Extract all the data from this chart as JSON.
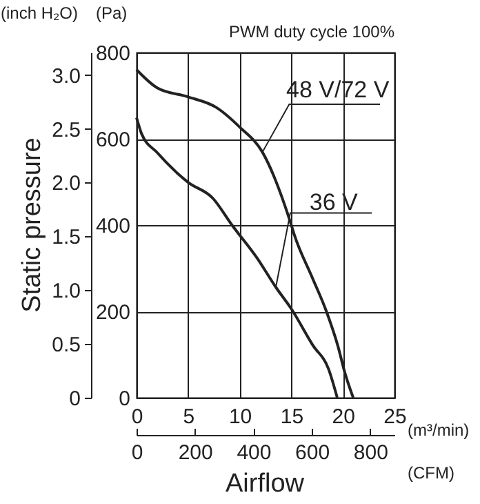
{
  "chart_data": {
    "type": "line",
    "title": "PWM duty cycle 100%",
    "xlabel": "(m³/min)",
    "ylabel": "(Pa)",
    "y2label": "(inch H₂O)",
    "x2label": "(CFM)",
    "annotations": [
      "Static pressure",
      "Airflow"
    ],
    "series": [
      {
        "name": "48 V/72 V",
        "color": "#222222",
        "x": [
          0,
          2,
          5,
          7.7,
          10,
          12.2,
          15,
          15.3,
          17,
          18.4,
          19.5,
          20.2,
          21.0
        ],
        "values": [
          760,
          718,
          697,
          673,
          627,
          569,
          400,
          377,
          280,
          200,
          121,
          57,
          0
        ]
      },
      {
        "name": "36 V",
        "color": "#222222",
        "x": [
          0,
          0.5,
          2,
          5,
          7.4,
          9.25,
          11.7,
          13.5,
          15,
          17.1,
          18.6,
          19.45
        ],
        "values": [
          649,
          611,
          568,
          499,
          462,
          400,
          323,
          256,
          206,
          121,
          67,
          0
        ]
      }
    ],
    "xlim": [
      0,
      25
    ],
    "xticks": [
      0,
      5,
      10,
      15,
      20,
      25
    ],
    "ylim": [
      0,
      800
    ],
    "yticks": [
      0,
      200,
      400,
      600,
      800
    ],
    "y2lim": [
      0,
      3.21
    ],
    "y2ticks": [
      {
        "value": 0,
        "label": "0"
      },
      0.5,
      {
        "value": 1,
        "label": "1.0"
      },
      1.5,
      {
        "value": 2,
        "label": "2.0"
      },
      2.5,
      {
        "value": 3,
        "label": "3.0"
      }
    ],
    "x2lim": [
      0,
      883
    ],
    "x2ticks": [
      0,
      200,
      400,
      600,
      800
    ],
    "grid": true,
    "line_style": "solid"
  }
}
